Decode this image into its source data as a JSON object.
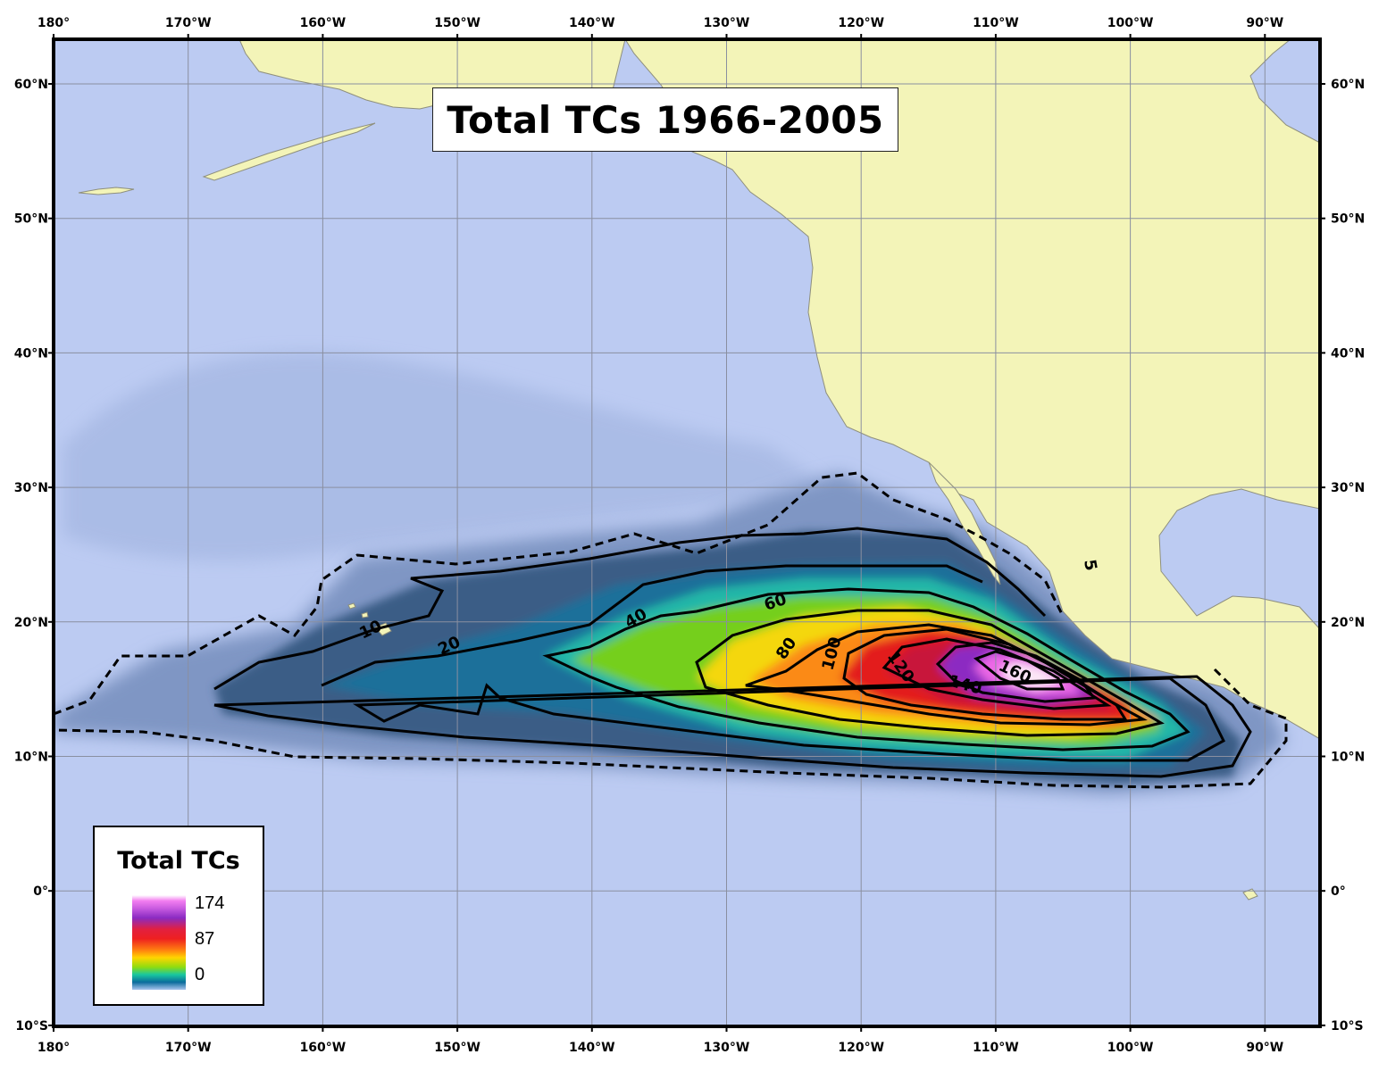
{
  "title": "Total TCs 1966-2005",
  "legend": {
    "title": "Total TCs",
    "values": [
      "174",
      "87",
      "0"
    ]
  },
  "axes": {
    "longitude_labels": [
      "180°",
      "170°W",
      "160°W",
      "150°W",
      "140°W",
      "130°W",
      "120°W",
      "110°W",
      "100°W",
      "90°W"
    ],
    "latitude_labels": [
      "60°N",
      "50°N",
      "40°N",
      "30°N",
      "20°N",
      "10°N",
      "0°",
      "10°S"
    ]
  },
  "contour_labels": [
    "5",
    "10",
    "20",
    "40",
    "60",
    "80",
    "100",
    "120",
    "140",
    "160"
  ],
  "colors": {
    "ocean": "#bccbf2",
    "land": "#f3f4b8",
    "grid": "#8a8fa0",
    "contour": "#000000"
  }
}
